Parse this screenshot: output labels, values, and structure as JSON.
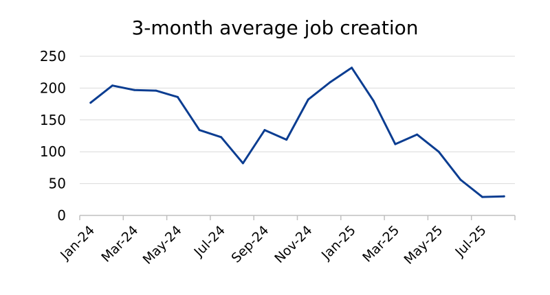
{
  "chart_data": {
    "type": "line",
    "title": "3-month average job creation",
    "xlabel": "",
    "ylabel": "",
    "ylim": [
      0,
      250
    ],
    "yticks": [
      0,
      50,
      100,
      150,
      200,
      250
    ],
    "grid": true,
    "categories": [
      "Jan-24",
      "Feb-24",
      "Mar-24",
      "Apr-24",
      "May-24",
      "Jun-24",
      "Jul-24",
      "Aug-24",
      "Sep-24",
      "Oct-24",
      "Nov-24",
      "Dec-24",
      "Jan-25",
      "Feb-25",
      "Mar-25",
      "Apr-25",
      "May-25",
      "Jun-25",
      "Jul-25",
      "Aug-25"
    ],
    "xtick_labels": [
      "Jan-24",
      "Mar-24",
      "May-24",
      "Jul-24",
      "Sep-24",
      "Nov-24",
      "Jan-25",
      "Mar-25",
      "May-25",
      "Jul-25"
    ],
    "series": [
      {
        "color": "#0b3d91",
        "values": [
          177,
          204,
          197,
          196,
          186,
          134,
          123,
          82,
          134,
          119,
          182,
          209,
          232,
          180,
          112,
          127,
          100,
          56,
          29,
          30
        ]
      }
    ]
  }
}
